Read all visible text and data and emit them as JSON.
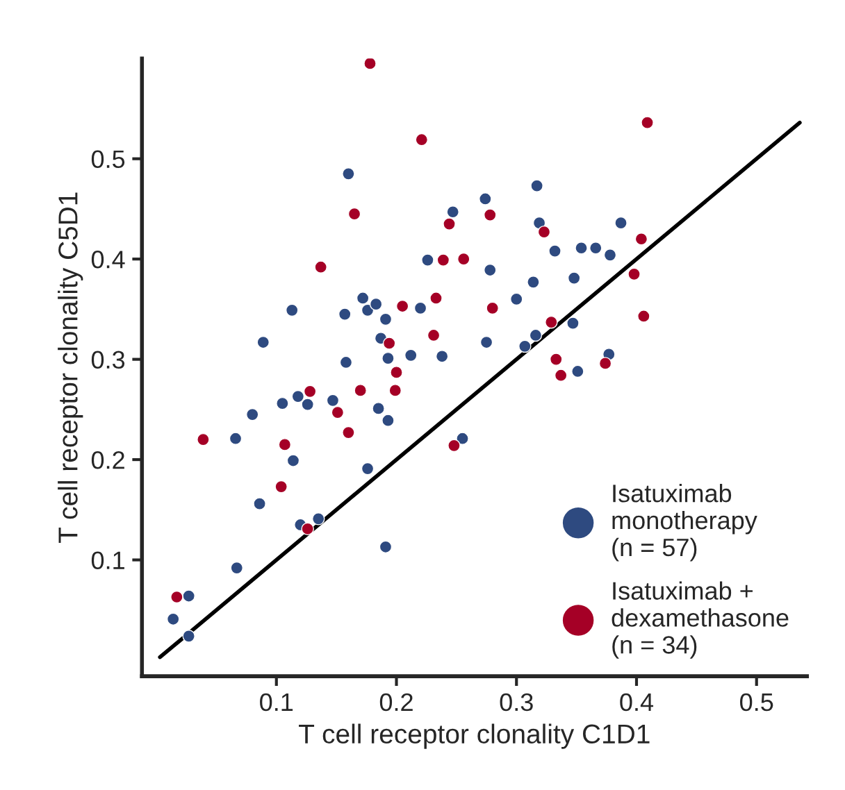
{
  "chart_data": {
    "type": "scatter",
    "xlabel": "T cell receptor clonality C1D1",
    "ylabel": "T cell receptor clonality C5D1",
    "xlim": [
      -0.012,
      0.542
    ],
    "ylim": [
      -0.016,
      0.6
    ],
    "xticks": [
      0.1,
      0.2,
      0.3,
      0.4,
      0.5
    ],
    "yticks": [
      0.1,
      0.2,
      0.3,
      0.4,
      0.5
    ],
    "grid": false,
    "legend": "bottom right",
    "marker": "circle",
    "series": [
      {
        "name": "Isatuximab\nmonotherapy\n(n = 57)",
        "color": "#2e4a80",
        "x": [
          0.014,
          0.027,
          0.027,
          0.067,
          0.066,
          0.08,
          0.086,
          0.089,
          0.105,
          0.113,
          0.114,
          0.118,
          0.12,
          0.126,
          0.135,
          0.147,
          0.157,
          0.158,
          0.16,
          0.172,
          0.176,
          0.176,
          0.183,
          0.185,
          0.187,
          0.191,
          0.191,
          0.193,
          0.193,
          0.212,
          0.22,
          0.226,
          0.238,
          0.247,
          0.255,
          0.274,
          0.278,
          0.275,
          0.3,
          0.307,
          0.316,
          0.314,
          0.317,
          0.319,
          0.332,
          0.347,
          0.348,
          0.351,
          0.354,
          0.366,
          0.378,
          0.387,
          0.377
        ],
        "values": [
          0.041,
          0.064,
          0.024,
          0.092,
          0.221,
          0.245,
          0.156,
          0.317,
          0.256,
          0.349,
          0.199,
          0.263,
          0.135,
          0.255,
          0.141,
          0.259,
          0.345,
          0.297,
          0.485,
          0.361,
          0.349,
          0.191,
          0.355,
          0.251,
          0.321,
          0.34,
          0.113,
          0.301,
          0.239,
          0.304,
          0.351,
          0.399,
          0.303,
          0.447,
          0.221,
          0.46,
          0.389,
          0.317,
          0.36,
          0.313,
          0.324,
          0.377,
          0.473,
          0.436,
          0.408,
          0.336,
          0.381,
          0.288,
          0.411,
          0.411,
          0.404,
          0.436,
          0.305
        ]
      },
      {
        "name": "Isatuximab +\ndexamethasone\n(n = 34)",
        "color": "#a50026",
        "x": [
          0.178,
          0.221,
          0.165,
          0.244,
          0.137,
          0.239,
          0.256,
          0.205,
          0.233,
          0.231,
          0.194,
          0.409,
          0.278,
          0.323,
          0.404,
          0.398,
          0.28,
          0.406,
          0.329,
          0.333,
          0.337,
          0.374,
          0.039,
          0.107,
          0.104,
          0.128,
          0.151,
          0.16,
          0.17,
          0.2,
          0.199,
          0.126,
          0.017,
          0.248
        ],
        "values": [
          0.595,
          0.519,
          0.445,
          0.435,
          0.392,
          0.399,
          0.4,
          0.353,
          0.361,
          0.324,
          0.316,
          0.536,
          0.444,
          0.427,
          0.42,
          0.385,
          0.351,
          0.343,
          0.337,
          0.3,
          0.284,
          0.296,
          0.22,
          0.215,
          0.173,
          0.268,
          0.247,
          0.227,
          0.269,
          0.287,
          0.269,
          0.131,
          0.063,
          0.214
        ]
      },
      {
        "type": "line",
        "color": "#000000",
        "marker": "none",
        "x": [
          0.003,
          0.536
        ],
        "values": [
          0.003,
          0.536
        ]
      }
    ]
  }
}
